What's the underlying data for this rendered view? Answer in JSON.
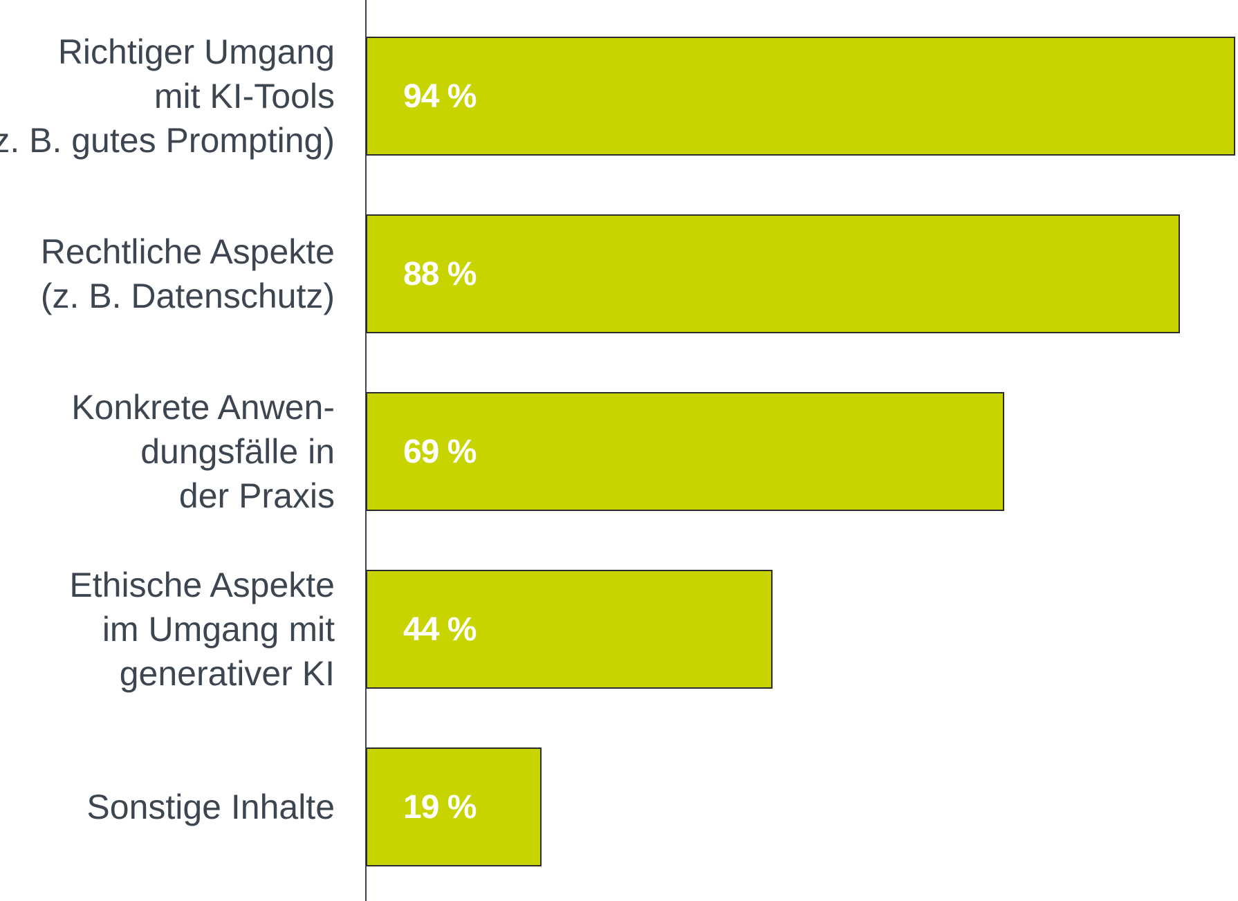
{
  "chart_data": {
    "type": "bar",
    "orientation": "horizontal",
    "categories": [
      "Richtiger Umgang\nmit KI-Tools\n(z. B. gutes Prompting)",
      "Rechtliche Aspekte\n(z. B. Datenschutz)",
      "Konkrete Anwen-\ndungsfälle in\nder Praxis",
      "Ethische Aspekte\nim Umgang mit\ngenerativer KI",
      "Sonstige Inhalte"
    ],
    "values": [
      94,
      88,
      69,
      44,
      19
    ],
    "value_labels": [
      "94 %",
      "88 %",
      "69 %",
      "44 %",
      "19 %"
    ],
    "color": "#c8d400"
  }
}
